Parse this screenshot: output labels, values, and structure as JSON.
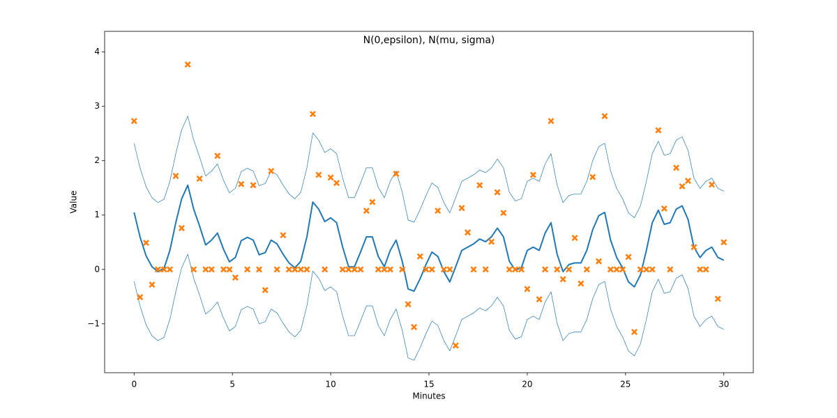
{
  "chart_data": {
    "type": "line",
    "title": "N(0,epsilon), N(mu, sigma)",
    "x_label": "Minutes",
    "y_label": "Value",
    "xlim": [
      -1.5,
      31.5
    ],
    "ylim": [
      -1.9,
      4.38
    ],
    "xticks": [
      0,
      5,
      10,
      15,
      20,
      25,
      30
    ],
    "yticks": [
      {
        "value": -1,
        "label": "−1"
      },
      0,
      1,
      2,
      3,
      4
    ],
    "grid": false,
    "x": [
      0,
      0.3,
      0.61,
      0.91,
      1.21,
      1.52,
      1.82,
      2.12,
      2.42,
      2.73,
      3.03,
      3.33,
      3.64,
      3.94,
      4.24,
      4.55,
      4.85,
      5.15,
      5.45,
      5.76,
      6.06,
      6.36,
      6.67,
      6.97,
      7.27,
      7.58,
      7.88,
      8.18,
      8.48,
      8.79,
      9.09,
      9.39,
      9.7,
      10,
      10.3,
      10.61,
      10.91,
      11.21,
      11.52,
      11.82,
      12.12,
      12.42,
      12.73,
      13.03,
      13.33,
      13.64,
      13.94,
      14.24,
      14.55,
      14.85,
      15.15,
      15.45,
      15.76,
      16.06,
      16.36,
      16.67,
      16.97,
      17.27,
      17.58,
      17.88,
      18.18,
      18.48,
      18.79,
      19.09,
      19.39,
      19.7,
      20,
      20.3,
      20.61,
      20.91,
      21.21,
      21.52,
      21.82,
      22.12,
      22.42,
      22.73,
      23.03,
      23.33,
      23.64,
      23.94,
      24.24,
      24.55,
      24.85,
      25.15,
      25.45,
      25.76,
      26.06,
      26.36,
      26.67,
      26.97,
      27.27,
      27.58,
      27.88,
      28.18,
      28.48,
      28.79,
      29.09,
      29.39,
      29.7,
      30
    ],
    "series": [
      {
        "kind": "line",
        "color": "#1f77b4",
        "width": 0.7,
        "values": [
          2.32,
          1.87,
          1.52,
          1.32,
          1.23,
          1.29,
          1.62,
          2.13,
          2.57,
          2.82,
          2.38,
          2.07,
          1.72,
          1.81,
          1.94,
          1.64,
          1.41,
          1.49,
          1.8,
          1.86,
          1.81,
          1.54,
          1.58,
          1.81,
          1.74,
          1.55,
          1.39,
          1.3,
          1.42,
          1.87,
          2.51,
          2.38,
          2.15,
          2.22,
          2.13,
          1.68,
          1.32,
          1.32,
          1.59,
          1.87,
          1.87,
          1.51,
          1.32,
          1.62,
          1.81,
          1.42,
          0.91,
          0.87,
          1.1,
          1.36,
          1.59,
          1.51,
          1.23,
          1.04,
          1.32,
          1.62,
          1.68,
          1.74,
          1.83,
          1.78,
          1.87,
          2.03,
          1.87,
          1.42,
          1.26,
          1.3,
          1.62,
          1.68,
          1.62,
          1.94,
          2.13,
          1.55,
          1.23,
          1.36,
          1.39,
          1.39,
          1.62,
          2.0,
          2.26,
          2.32,
          1.81,
          1.49,
          1.3,
          1.04,
          0.95,
          1.17,
          1.62,
          2.13,
          2.36,
          2.1,
          2.13,
          2.38,
          2.44,
          2.19,
          1.68,
          1.49,
          1.62,
          1.68,
          1.49,
          1.44
        ]
      },
      {
        "kind": "line",
        "color": "#1f77b4",
        "width": 2,
        "values": [
          1.05,
          0.6,
          0.25,
          0.05,
          -0.04,
          0.02,
          0.35,
          0.86,
          1.3,
          1.55,
          1.11,
          0.8,
          0.45,
          0.54,
          0.67,
          0.37,
          0.14,
          0.22,
          0.53,
          0.59,
          0.54,
          0.27,
          0.31,
          0.54,
          0.47,
          0.28,
          0.12,
          0.03,
          0.15,
          0.6,
          1.24,
          1.11,
          0.88,
          0.95,
          0.86,
          0.41,
          0.05,
          0.05,
          0.32,
          0.6,
          0.6,
          0.24,
          0.05,
          0.35,
          0.54,
          0.15,
          -0.36,
          -0.4,
          -0.17,
          0.09,
          0.32,
          0.24,
          -0.04,
          -0.23,
          0.05,
          0.35,
          0.41,
          0.47,
          0.56,
          0.51,
          0.6,
          0.76,
          0.6,
          0.15,
          -0.01,
          0.03,
          0.35,
          0.41,
          0.35,
          0.67,
          0.86,
          0.28,
          -0.04,
          0.09,
          0.12,
          0.12,
          0.35,
          0.73,
          0.99,
          1.05,
          0.54,
          0.22,
          0.03,
          -0.23,
          -0.32,
          -0.1,
          0.35,
          0.86,
          1.09,
          0.83,
          0.86,
          1.11,
          1.17,
          0.92,
          0.41,
          0.22,
          0.35,
          0.41,
          0.22,
          0.17
        ]
      },
      {
        "kind": "line",
        "color": "#1f77b4",
        "width": 0.7,
        "values": [
          -0.22,
          -0.67,
          -1.02,
          -1.22,
          -1.31,
          -1.25,
          -0.92,
          -0.41,
          0.03,
          0.28,
          -0.16,
          -0.47,
          -0.82,
          -0.73,
          -0.6,
          -0.9,
          -1.13,
          -1.05,
          -0.74,
          -0.68,
          -0.73,
          -1.0,
          -0.96,
          -0.73,
          -0.8,
          -0.99,
          -1.15,
          -1.24,
          -1.12,
          -0.67,
          -0.03,
          -0.16,
          -0.39,
          -0.32,
          -0.41,
          -0.86,
          -1.22,
          -1.22,
          -0.95,
          -0.67,
          -0.67,
          -1.03,
          -1.22,
          -0.92,
          -0.73,
          -1.12,
          -1.63,
          -1.67,
          -1.44,
          -1.18,
          -0.95,
          -1.03,
          -1.31,
          -1.5,
          -1.22,
          -0.92,
          -0.86,
          -0.8,
          -0.71,
          -0.76,
          -0.67,
          -0.51,
          -0.67,
          -1.12,
          -1.28,
          -1.24,
          -0.92,
          -0.86,
          -0.92,
          -0.6,
          -0.41,
          -0.99,
          -1.31,
          -1.18,
          -1.15,
          -1.15,
          -0.92,
          -0.54,
          -0.28,
          -0.22,
          -0.73,
          -1.05,
          -1.24,
          -1.5,
          -1.59,
          -1.37,
          -0.92,
          -0.41,
          -0.18,
          -0.44,
          -0.41,
          -0.16,
          -0.1,
          -0.35,
          -0.86,
          -1.05,
          -0.92,
          -0.86,
          -1.05,
          -1.1
        ]
      },
      {
        "kind": "scatter",
        "color": "#ff7f0e",
        "values": [
          2.73,
          -0.51,
          0.49,
          -0.28,
          0,
          0,
          0,
          1.72,
          0.76,
          3.77,
          0,
          1.67,
          0,
          0,
          2.09,
          0,
          0,
          -0.15,
          1.57,
          0,
          1.55,
          0,
          -0.38,
          1.81,
          0,
          0.63,
          0,
          0,
          0,
          0,
          2.86,
          1.74,
          0,
          1.69,
          1.59,
          0,
          0,
          0,
          0,
          1.08,
          1.24,
          0,
          0,
          0,
          1.76,
          0,
          -0.64,
          -1.06,
          0.24,
          0,
          0,
          1.08,
          0,
          0,
          -1.4,
          1.13,
          0.68,
          0,
          1.55,
          0,
          0.51,
          1.42,
          1.04,
          0,
          0,
          0,
          -0.36,
          1.74,
          -0.55,
          0,
          2.73,
          0,
          -0.18,
          0,
          0.58,
          -0.26,
          0,
          1.7,
          0.15,
          2.82,
          0,
          0,
          0,
          0.23,
          -1.15,
          0,
          0,
          0,
          2.56,
          1.12,
          0,
          1.87,
          1.53,
          1.63,
          0.41,
          0,
          0,
          1.56,
          -0.54,
          0.5
        ]
      }
    ]
  }
}
